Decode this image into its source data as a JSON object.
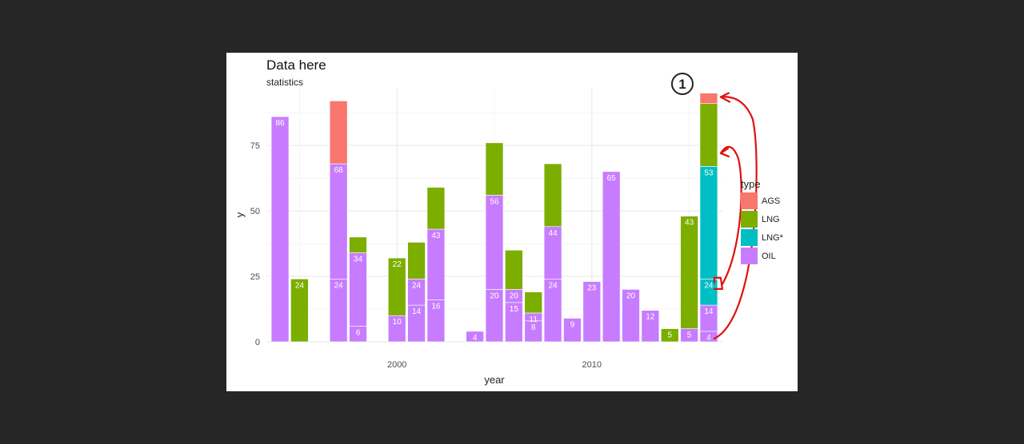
{
  "chart_data": {
    "type": "bar",
    "stacked": true,
    "title": "Data here",
    "subtitle": "statistics",
    "xlabel": "year",
    "ylabel": "y",
    "xlim": [
      1993.3,
      2016.7
    ],
    "ylim": [
      0,
      97
    ],
    "x_ticks": [
      "2000",
      "2010"
    ],
    "y_ticks": [
      "0",
      "25",
      "50",
      "75"
    ],
    "legend_title": "type",
    "legend_position": "right",
    "grid": true,
    "series": [
      {
        "name": "AGS",
        "color": "#F8766D"
      },
      {
        "name": "LNG",
        "color": "#7CAE00"
      },
      {
        "name": "LNG*",
        "color": "#00BFC4"
      },
      {
        "name": "OIL",
        "color": "#C77CFF"
      }
    ],
    "bars": [
      {
        "x": 1994,
        "segments": [
          {
            "type": "OIL",
            "value": 86,
            "label": "86"
          }
        ]
      },
      {
        "x": 1995,
        "segments": [
          {
            "type": "LNG",
            "value": 24,
            "label": "24"
          }
        ]
      },
      {
        "x": 1997,
        "segments": [
          {
            "type": "OIL",
            "value": 24,
            "label": "24"
          },
          {
            "type": "OIL",
            "value": 44,
            "label": "68"
          },
          {
            "type": "AGS",
            "value": 24,
            "label": ""
          }
        ]
      },
      {
        "x": 1998,
        "segments": [
          {
            "type": "OIL",
            "value": 6,
            "label": "6"
          },
          {
            "type": "OIL",
            "value": 28,
            "label": "34"
          },
          {
            "type": "LNG",
            "value": 6,
            "label": ""
          }
        ]
      },
      {
        "x": 2000,
        "segments": [
          {
            "type": "OIL",
            "value": 10,
            "label": "10"
          },
          {
            "type": "LNG",
            "value": 22,
            "label": "22"
          }
        ]
      },
      {
        "x": 2001,
        "segments": [
          {
            "type": "OIL",
            "value": 14,
            "label": "14"
          },
          {
            "type": "OIL",
            "value": 10,
            "label": "24"
          },
          {
            "type": "LNG",
            "value": 14,
            "label": ""
          }
        ]
      },
      {
        "x": 2002,
        "segments": [
          {
            "type": "OIL",
            "value": 16,
            "label": "16"
          },
          {
            "type": "OIL",
            "value": 27,
            "label": "43"
          },
          {
            "type": "LNG",
            "value": 16,
            "label": ""
          }
        ]
      },
      {
        "x": 2004,
        "segments": [
          {
            "type": "OIL",
            "value": 4,
            "label": "4"
          }
        ]
      },
      {
        "x": 2005,
        "segments": [
          {
            "type": "OIL",
            "value": 20,
            "label": "20"
          },
          {
            "type": "OIL",
            "value": 36,
            "label": "56"
          },
          {
            "type": "LNG",
            "value": 20,
            "label": ""
          }
        ]
      },
      {
        "x": 2006,
        "segments": [
          {
            "type": "OIL",
            "value": 15,
            "label": "15"
          },
          {
            "type": "OIL",
            "value": 5,
            "label": "20"
          },
          {
            "type": "LNG",
            "value": 15,
            "label": ""
          }
        ]
      },
      {
        "x": 2007,
        "segments": [
          {
            "type": "OIL",
            "value": 8,
            "label": "8"
          },
          {
            "type": "OIL",
            "value": 3,
            "label": "11"
          },
          {
            "type": "LNG",
            "value": 8,
            "label": ""
          }
        ]
      },
      {
        "x": 2008,
        "segments": [
          {
            "type": "OIL",
            "value": 24,
            "label": "24"
          },
          {
            "type": "OIL",
            "value": 20,
            "label": "44"
          },
          {
            "type": "LNG",
            "value": 24,
            "label": ""
          }
        ]
      },
      {
        "x": 2009,
        "segments": [
          {
            "type": "OIL",
            "value": 9,
            "label": "9"
          }
        ]
      },
      {
        "x": 2010,
        "segments": [
          {
            "type": "OIL",
            "value": 23,
            "label": "23"
          }
        ]
      },
      {
        "x": 2011,
        "segments": [
          {
            "type": "OIL",
            "value": 65,
            "label": "65"
          }
        ]
      },
      {
        "x": 2012,
        "segments": [
          {
            "type": "OIL",
            "value": 20,
            "label": "20"
          }
        ]
      },
      {
        "x": 2013,
        "segments": [
          {
            "type": "OIL",
            "value": 12,
            "label": "12"
          }
        ]
      },
      {
        "x": 2014,
        "segments": [
          {
            "type": "LNG",
            "value": 5,
            "label": "5"
          }
        ]
      },
      {
        "x": 2015,
        "segments": [
          {
            "type": "OIL",
            "value": 5,
            "label": "5"
          },
          {
            "type": "LNG",
            "value": 43,
            "label": "43"
          }
        ]
      },
      {
        "x": 2016,
        "segments": [
          {
            "type": "OIL",
            "value": 4,
            "label": "4"
          },
          {
            "type": "OIL",
            "value": 10,
            "label": "14"
          },
          {
            "type": "LNG*",
            "value": 10,
            "label": "24"
          },
          {
            "type": "LNG*",
            "value": 43,
            "label": "53"
          },
          {
            "type": "LNG",
            "value": 24,
            "label": ""
          },
          {
            "type": "AGS",
            "value": 4,
            "label": ""
          }
        ]
      }
    ],
    "annotations": [
      {
        "type": "callout-number",
        "text": "1"
      }
    ]
  }
}
